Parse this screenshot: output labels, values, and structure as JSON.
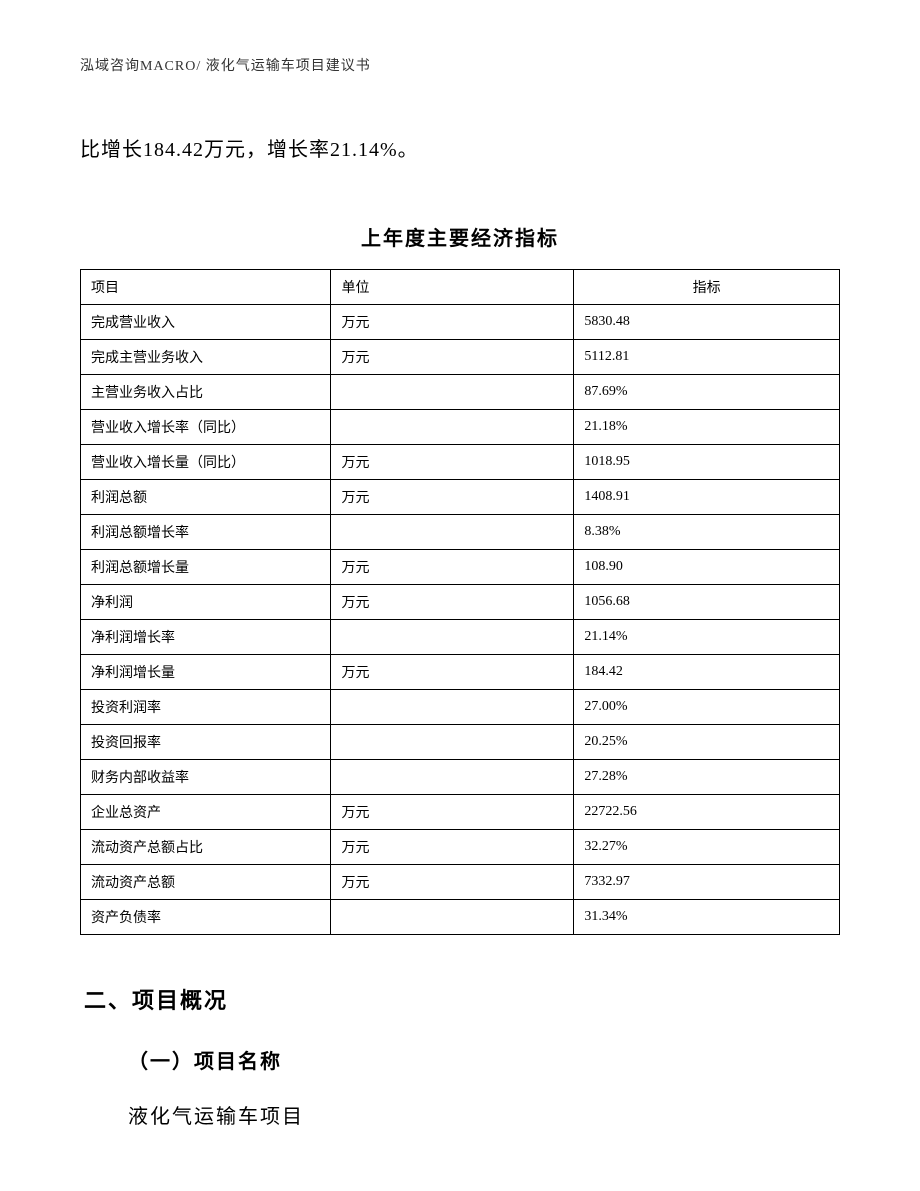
{
  "header": {
    "text": "泓域咨询MACRO/ 液化气运输车项目建议书"
  },
  "body_line": "比增长184.42万元，增长率21.14%。",
  "table": {
    "title": "上年度主要经济指标",
    "columns": [
      "项目",
      "单位",
      "指标"
    ],
    "rows": [
      {
        "project": "完成营业收入",
        "unit": "万元",
        "value": "5830.48"
      },
      {
        "project": "完成主营业务收入",
        "unit": "万元",
        "value": "5112.81"
      },
      {
        "project": "主营业务收入占比",
        "unit": "",
        "value": "87.69%"
      },
      {
        "project": "营业收入增长率（同比）",
        "unit": "",
        "value": "21.18%"
      },
      {
        "project": "营业收入增长量（同比）",
        "unit": "万元",
        "value": "1018.95"
      },
      {
        "project": "利润总额",
        "unit": "万元",
        "value": "1408.91"
      },
      {
        "project": "利润总额增长率",
        "unit": "",
        "value": "8.38%"
      },
      {
        "project": "利润总额增长量",
        "unit": "万元",
        "value": "108.90"
      },
      {
        "project": "净利润",
        "unit": "万元",
        "value": "1056.68"
      },
      {
        "project": "净利润增长率",
        "unit": "",
        "value": "21.14%"
      },
      {
        "project": "净利润增长量",
        "unit": "万元",
        "value": "184.42"
      },
      {
        "project": "投资利润率",
        "unit": "",
        "value": "27.00%"
      },
      {
        "project": "投资回报率",
        "unit": "",
        "value": "20.25%"
      },
      {
        "project": "财务内部收益率",
        "unit": "",
        "value": "27.28%"
      },
      {
        "project": "企业总资产",
        "unit": "万元",
        "value": "22722.56"
      },
      {
        "project": "流动资产总额占比",
        "unit": "万元",
        "value": "32.27%"
      },
      {
        "project": "流动资产总额",
        "unit": "万元",
        "value": "7332.97"
      },
      {
        "project": "资产负债率",
        "unit": "",
        "value": "31.34%"
      }
    ]
  },
  "section": {
    "heading": "二、项目概况",
    "sub_heading": "（一）项目名称",
    "content": "液化气运输车项目"
  },
  "styling": {
    "font_family_body": "SimSun",
    "font_family_headings": "SimHei",
    "text_color": "#000000",
    "border_color": "#000000",
    "background_color": "#ffffff",
    "header_fontsize": 14,
    "body_fontsize": 20,
    "table_title_fontsize": 20,
    "table_cell_fontsize": 14,
    "section_heading_fontsize": 22,
    "col_widths_pct": [
      33,
      32,
      35
    ]
  }
}
